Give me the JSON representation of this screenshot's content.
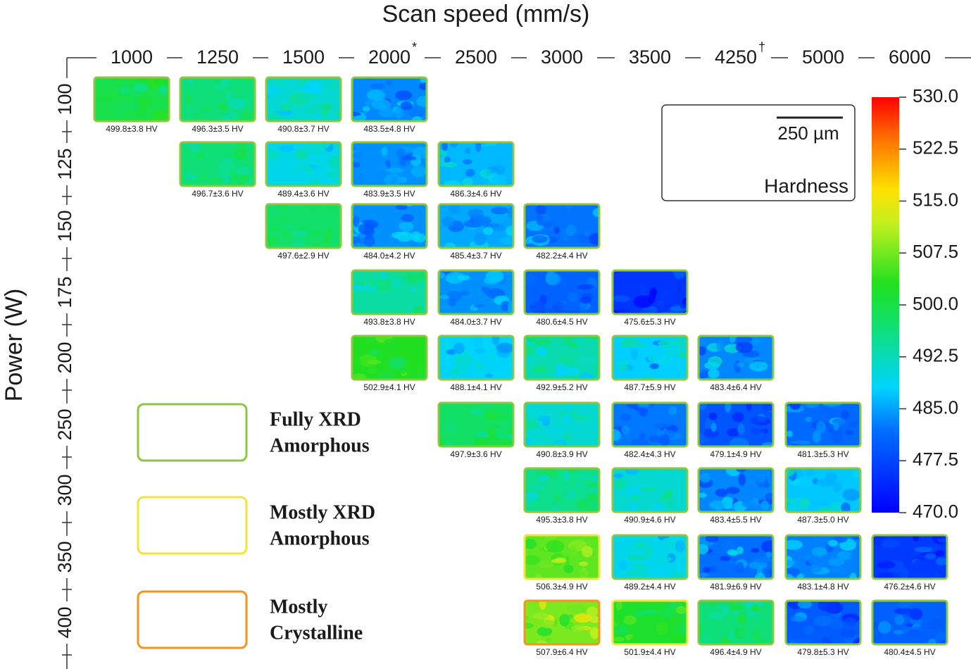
{
  "title": "Scan speed (mm/s)",
  "y_label": "Power (W)",
  "speeds": [
    {
      "speed": 1000
    },
    {
      "speed": 1250
    },
    {
      "speed": 1500
    },
    {
      "speed": 2000,
      "note": "*"
    },
    {
      "speed": 2500
    },
    {
      "speed": 3000
    },
    {
      "speed": 3500
    },
    {
      "speed": 4250,
      "note": "†"
    },
    {
      "speed": 5000
    },
    {
      "speed": 6000
    }
  ],
  "powers": [
    100,
    125,
    150,
    175,
    200,
    250,
    300,
    350,
    400
  ],
  "samples": [
    {
      "power": 100,
      "speed": 1000,
      "mean": 499.8,
      "sd": 3.8,
      "label": "499.8±3.8 HV",
      "border": "#8dc63f"
    },
    {
      "power": 100,
      "speed": 1250,
      "mean": 496.3,
      "sd": 3.5,
      "label": "496.3±3.5 HV",
      "border": "#8dc63f"
    },
    {
      "power": 100,
      "speed": 1500,
      "mean": 490.8,
      "sd": 3.7,
      "label": "490.8±3.7 HV",
      "border": "#8dc63f"
    },
    {
      "power": 100,
      "speed": 2000,
      "mean": 483.5,
      "sd": 4.8,
      "label": "483.5±4.8 HV",
      "border": "#8dc63f"
    },
    {
      "power": 125,
      "speed": 1250,
      "mean": 496.7,
      "sd": 3.6,
      "label": "496.7±3.6 HV",
      "border": "#8dc63f"
    },
    {
      "power": 125,
      "speed": 1500,
      "mean": 489.4,
      "sd": 3.6,
      "label": "489.4±3.6 HV",
      "border": "#8dc63f"
    },
    {
      "power": 125,
      "speed": 2000,
      "mean": 483.9,
      "sd": 3.5,
      "label": "483.9±3.5 HV",
      "border": "#8dc63f"
    },
    {
      "power": 125,
      "speed": 2500,
      "mean": 486.3,
      "sd": 4.6,
      "label": "486.3±4.6 HV",
      "border": "#8dc63f"
    },
    {
      "power": 150,
      "speed": 1500,
      "mean": 497.6,
      "sd": 2.9,
      "label": "497.6±2.9 HV",
      "border": "#8dc63f"
    },
    {
      "power": 150,
      "speed": 2000,
      "mean": 484.0,
      "sd": 4.2,
      "label": "484.0±4.2 HV",
      "border": "#8dc63f"
    },
    {
      "power": 150,
      "speed": 2500,
      "mean": 485.4,
      "sd": 3.7,
      "label": "485.4±3.7 HV",
      "border": "#8dc63f"
    },
    {
      "power": 150,
      "speed": 3000,
      "mean": 482.2,
      "sd": 4.4,
      "label": "482.2±4.4 HV",
      "border": "#8dc63f"
    },
    {
      "power": 175,
      "speed": 2000,
      "mean": 493.8,
      "sd": 3.8,
      "label": "493.8±3.8 HV",
      "border": "#8dc63f"
    },
    {
      "power": 175,
      "speed": 2500,
      "mean": 484.0,
      "sd": 3.7,
      "label": "484.0±3.7 HV",
      "border": "#8dc63f"
    },
    {
      "power": 175,
      "speed": 3000,
      "mean": 480.6,
      "sd": 4.5,
      "label": "480.6±4.5 HV",
      "border": "#8dc63f"
    },
    {
      "power": 175,
      "speed": 3500,
      "mean": 475.6,
      "sd": 5.3,
      "label": "475.6±5.3 HV",
      "border": "#8dc63f"
    },
    {
      "power": 200,
      "speed": 2000,
      "mean": 502.9,
      "sd": 4.1,
      "label": "502.9±4.1 HV",
      "border": "#8dc63f"
    },
    {
      "power": 200,
      "speed": 2500,
      "mean": 488.1,
      "sd": 4.1,
      "label": "488.1±4.1 HV",
      "border": "#8dc63f"
    },
    {
      "power": 200,
      "speed": 3000,
      "mean": 492.9,
      "sd": 5.2,
      "label": "492.9±5.2 HV",
      "border": "#8dc63f"
    },
    {
      "power": 200,
      "speed": 3500,
      "mean": 487.7,
      "sd": 5.9,
      "label": "487.7±5.9 HV",
      "border": "#8dc63f"
    },
    {
      "power": 200,
      "speed": 4250,
      "mean": 483.4,
      "sd": 6.4,
      "label": "483.4±6.4 HV",
      "border": "#8dc63f"
    },
    {
      "power": 250,
      "speed": 2500,
      "mean": 497.9,
      "sd": 3.6,
      "label": "497.9±3.6 HV",
      "border": "#8dc63f"
    },
    {
      "power": 250,
      "speed": 3000,
      "mean": 490.8,
      "sd": 3.9,
      "label": "490.8±3.9 HV",
      "border": "#8dc63f"
    },
    {
      "power": 250,
      "speed": 3500,
      "mean": 482.4,
      "sd": 4.3,
      "label": "482.4±4.3 HV",
      "border": "#8dc63f"
    },
    {
      "power": 250,
      "speed": 4250,
      "mean": 479.1,
      "sd": 4.9,
      "label": "479.1±4.9 HV",
      "border": "#8dc63f"
    },
    {
      "power": 250,
      "speed": 5000,
      "mean": 481.3,
      "sd": 5.3,
      "label": "481.3±5.3 HV",
      "border": "#8dc63f"
    },
    {
      "power": 300,
      "speed": 3000,
      "mean": 495.3,
      "sd": 3.8,
      "label": "495.3±3.8 HV",
      "border": "#8dc63f"
    },
    {
      "power": 300,
      "speed": 3500,
      "mean": 490.9,
      "sd": 4.6,
      "label": "490.9±4.6 HV",
      "border": "#8dc63f"
    },
    {
      "power": 300,
      "speed": 4250,
      "mean": 483.4,
      "sd": 5.5,
      "label": "483.4±5.5 HV",
      "border": "#8dc63f"
    },
    {
      "power": 300,
      "speed": 5000,
      "mean": 487.3,
      "sd": 5.0,
      "label": "487.3±5.0 HV",
      "border": "#8dc63f"
    },
    {
      "power": 350,
      "speed": 3000,
      "mean": 506.3,
      "sd": 4.9,
      "label": "506.3±4.9 HV",
      "border": "#f2e33a"
    },
    {
      "power": 350,
      "speed": 3500,
      "mean": 489.2,
      "sd": 4.4,
      "label": "489.2±4.4 HV",
      "border": "#8dc63f"
    },
    {
      "power": 350,
      "speed": 4250,
      "mean": 481.9,
      "sd": 6.9,
      "label": "481.9±6.9 HV",
      "border": "#8dc63f"
    },
    {
      "power": 350,
      "speed": 5000,
      "mean": 483.1,
      "sd": 4.8,
      "label": "483.1±4.8 HV",
      "border": "#8dc63f"
    },
    {
      "power": 350,
      "speed": 6000,
      "mean": 476.2,
      "sd": 4.6,
      "label": "476.2±4.6 HV",
      "border": "#8dc63f"
    },
    {
      "power": 400,
      "speed": 3000,
      "mean": 507.9,
      "sd": 6.4,
      "label": "507.9±6.4 HV",
      "border": "#f7941d"
    },
    {
      "power": 400,
      "speed": 3500,
      "mean": 501.9,
      "sd": 4.4,
      "label": "501.9±4.4 HV",
      "border": "#f2e33a"
    },
    {
      "power": 400,
      "speed": 4250,
      "mean": 496.4,
      "sd": 4.9,
      "label": "496.4±4.9 HV",
      "border": "#8dc63f"
    },
    {
      "power": 400,
      "speed": 5000,
      "mean": 479.8,
      "sd": 5.3,
      "label": "479.8±5.3 HV",
      "border": "#8dc63f"
    },
    {
      "power": 400,
      "speed": 6000,
      "mean": 480.4,
      "sd": 4.5,
      "label": "480.4±4.5 HV",
      "border": "#8dc63f"
    }
  ],
  "colorbar": {
    "title": "Hardness",
    "lim": [
      470,
      530
    ],
    "ticks": [
      {
        "value": 470,
        "label": "470.0"
      },
      {
        "value": 477.5,
        "label": "477.5"
      },
      {
        "value": 485,
        "label": "485.0"
      },
      {
        "value": 492.5,
        "label": "492.5"
      },
      {
        "value": 500,
        "label": "500.0"
      },
      {
        "value": 507.5,
        "label": "507.5"
      },
      {
        "value": 515,
        "label": "515.0"
      },
      {
        "value": 522.5,
        "label": "522.5"
      },
      {
        "value": 530,
        "label": "530.0"
      }
    ]
  },
  "scale_bar": "250 µm",
  "legend": [
    {
      "lines": [
        "Fully XRD",
        "Amorphous"
      ],
      "color": "#8dc63f"
    },
    {
      "lines": [
        "Mostly XRD",
        "Amorphous"
      ],
      "color": "#f2e33a"
    },
    {
      "lines": [
        "Mostly",
        "Crystalline"
      ],
      "color": "#f7941d"
    }
  ]
}
